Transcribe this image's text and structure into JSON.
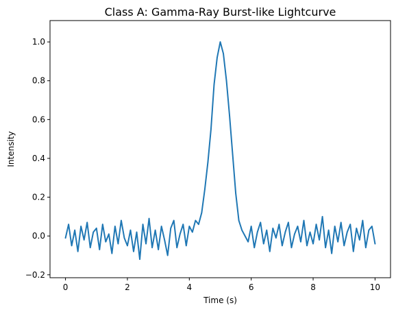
{
  "chart_data": {
    "type": "line",
    "title": "Class A: Gamma-Ray Burst-like Lightcurve",
    "xlabel": "Time (s)",
    "ylabel": "Intensity",
    "xlim": [
      -0.5,
      10.5
    ],
    "ylim": [
      -0.215,
      1.11
    ],
    "x_ticks": [
      0,
      2,
      4,
      6,
      8,
      10
    ],
    "x_tick_labels": [
      "0",
      "2",
      "4",
      "6",
      "8",
      "10"
    ],
    "y_ticks": [
      -0.2,
      0.0,
      0.2,
      0.4,
      0.6,
      0.8,
      1.0
    ],
    "y_tick_labels": [
      "−0.2",
      "0.0",
      "0.2",
      "0.4",
      "0.6",
      "0.8",
      "1.0"
    ],
    "grid": false,
    "legend": "none",
    "colors": {
      "series": "#1f77b4",
      "axes": "#000000",
      "background": "#ffffff"
    },
    "series": [
      {
        "x": [
          0.0,
          0.1,
          0.2,
          0.3,
          0.4,
          0.5,
          0.6,
          0.7,
          0.8,
          0.9,
          1.0,
          1.1,
          1.2,
          1.3,
          1.4,
          1.5,
          1.6,
          1.7,
          1.8,
          1.9,
          2.0,
          2.1,
          2.2,
          2.3,
          2.4,
          2.5,
          2.6,
          2.7,
          2.8,
          2.9,
          3.0,
          3.1,
          3.2,
          3.3,
          3.4,
          3.5,
          3.6,
          3.7,
          3.8,
          3.9,
          4.0,
          4.1,
          4.2,
          4.3,
          4.4,
          4.5,
          4.6,
          4.7,
          4.8,
          4.9,
          5.0,
          5.1,
          5.2,
          5.3,
          5.4,
          5.5,
          5.6,
          5.7,
          5.8,
          5.9,
          6.0,
          6.1,
          6.2,
          6.3,
          6.4,
          6.5,
          6.6,
          6.7,
          6.8,
          6.9,
          7.0,
          7.1,
          7.2,
          7.3,
          7.4,
          7.5,
          7.6,
          7.7,
          7.8,
          7.9,
          8.0,
          8.1,
          8.2,
          8.3,
          8.4,
          8.5,
          8.6,
          8.7,
          8.8,
          8.9,
          9.0,
          9.1,
          9.2,
          9.3,
          9.4,
          9.5,
          9.6,
          9.7,
          9.8,
          9.9,
          10.0
        ],
        "values": [
          -0.01,
          0.06,
          -0.05,
          0.03,
          -0.08,
          0.05,
          -0.02,
          0.07,
          -0.06,
          0.02,
          0.04,
          -0.07,
          0.06,
          -0.03,
          0.01,
          -0.09,
          0.05,
          -0.04,
          0.08,
          -0.01,
          -0.05,
          0.03,
          -0.08,
          0.02,
          -0.12,
          0.06,
          -0.04,
          0.09,
          -0.06,
          0.03,
          -0.07,
          0.05,
          -0.02,
          -0.1,
          0.04,
          0.08,
          -0.06,
          0.01,
          0.06,
          -0.05,
          0.05,
          0.02,
          0.08,
          0.06,
          0.12,
          0.24,
          0.38,
          0.55,
          0.78,
          0.92,
          1.0,
          0.94,
          0.8,
          0.62,
          0.42,
          0.22,
          0.08,
          0.03,
          0.0,
          -0.03,
          0.05,
          -0.06,
          0.02,
          0.07,
          -0.04,
          0.03,
          -0.08,
          0.04,
          -0.01,
          0.06,
          -0.05,
          0.02,
          0.07,
          -0.06,
          0.01,
          0.05,
          -0.03,
          0.08,
          -0.05,
          0.02,
          -0.04,
          0.06,
          -0.02,
          0.1,
          -0.06,
          0.03,
          -0.09,
          0.05,
          -0.03,
          0.07,
          -0.05,
          0.02,
          0.06,
          -0.08,
          0.04,
          -0.02,
          0.08,
          -0.06,
          0.03,
          0.05,
          -0.04
        ]
      }
    ]
  }
}
